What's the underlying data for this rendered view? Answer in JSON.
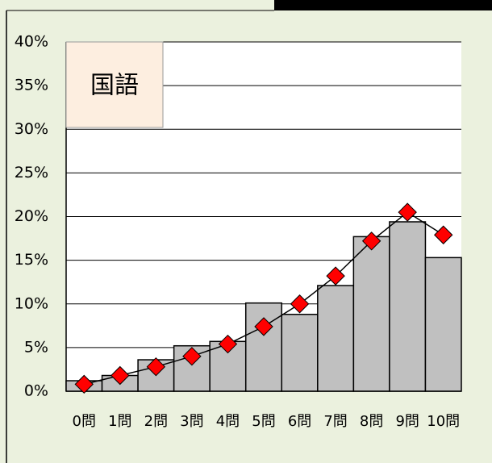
{
  "chart_data": {
    "type": "bar",
    "title": "国語",
    "categories": [
      "0問",
      "1問",
      "2問",
      "3問",
      "4問",
      "5問",
      "6問",
      "7問",
      "8問",
      "9問",
      "10問"
    ],
    "series": [
      {
        "type": "bar",
        "color": "#c0c0c0",
        "values": [
          1.2,
          1.8,
          3.6,
          5.2,
          5.7,
          10.1,
          8.8,
          12.1,
          17.7,
          19.4,
          15.3
        ]
      },
      {
        "type": "line",
        "color": "#ff0000",
        "values": [
          0.8,
          1.8,
          2.8,
          4.0,
          5.4,
          7.4,
          10.0,
          13.2,
          17.2,
          20.5,
          17.9
        ]
      }
    ],
    "ylim": [
      0,
      40
    ],
    "yticks": [
      {
        "value": 0,
        "label": "0%"
      },
      {
        "value": 5,
        "label": "5%"
      },
      {
        "value": 10,
        "label": "10%"
      },
      {
        "value": 15,
        "label": "15%"
      },
      {
        "value": 20,
        "label": "20%"
      },
      {
        "value": 25,
        "label": "25%"
      },
      {
        "value": 30,
        "label": "30%"
      },
      {
        "value": 35,
        "label": "35%"
      },
      {
        "value": 40,
        "label": "40%"
      }
    ],
    "grid": true
  }
}
